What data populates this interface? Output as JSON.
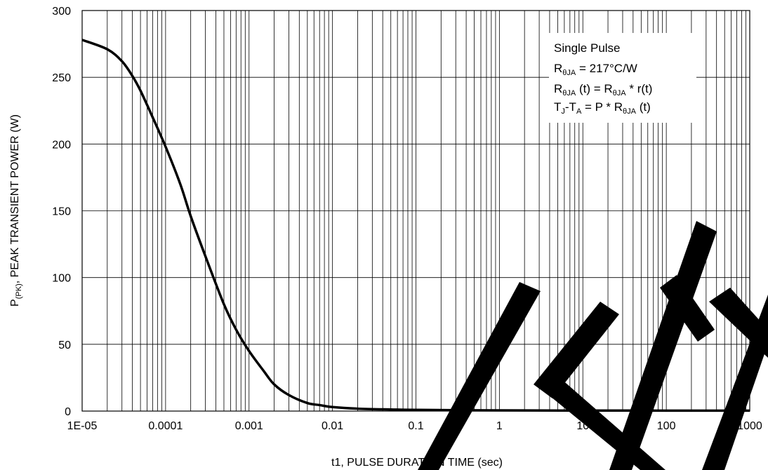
{
  "chart_data": {
    "type": "line",
    "x_scale": "log",
    "xlim": [
      1e-05,
      1000
    ],
    "ylim": [
      0,
      300
    ],
    "x_ticks": [
      1e-05,
      0.0001,
      0.001,
      0.01,
      0.1,
      1,
      10,
      100,
      1000
    ],
    "x_tick_labels": [
      "1E-05",
      "0.0001",
      "0.001",
      "0.01",
      "0.1",
      "1",
      "10",
      "100",
      "1000"
    ],
    "y_ticks": [
      0,
      50,
      100,
      150,
      200,
      250,
      300
    ],
    "y_tick_labels": [
      "0",
      "50",
      "100",
      "150",
      "200",
      "250",
      "300"
    ],
    "xlabel": "t1, PULSE DURATION TIME (sec)",
    "ylabel": {
      "main": "P",
      "sub": "(PK)",
      "rest": ", PEAK TRANSIENT POWER (W)"
    },
    "grid": true,
    "series": [
      {
        "x": [
          1e-05,
          2e-05,
          3e-05,
          4e-05,
          5e-05,
          7e-05,
          0.0001,
          0.00015,
          0.0002,
          0.0003,
          0.0005,
          0.0007,
          0.001,
          0.0015,
          0.002,
          0.003,
          0.005,
          0.007,
          0.01,
          0.02,
          0.05,
          0.1,
          1,
          10,
          100,
          1000
        ],
        "y": [
          278,
          271,
          262,
          251,
          240,
          220,
          198,
          170,
          146,
          116,
          80,
          61,
          45,
          30,
          20,
          12,
          6,
          4.5,
          3,
          1.8,
          1.2,
          0.9,
          0.5,
          0.4,
          0.35,
          0.3
        ]
      }
    ],
    "annotations": {
      "line1": "Single Pulse",
      "line2": {
        "a": "R",
        "a_sub": "θJA",
        "b": " = 217°C/W"
      },
      "line3": {
        "a": "R",
        "a_sub": "θJA",
        "b": " (t) = R",
        "b_sub": "θJA",
        "c": " * r(t)"
      },
      "line4": {
        "a": "T",
        "a_sub": "J",
        "b": "-T",
        "b_sub": "A",
        "c": " = P * R",
        "c_sub": "θJA",
        "d": " (t)"
      }
    }
  }
}
